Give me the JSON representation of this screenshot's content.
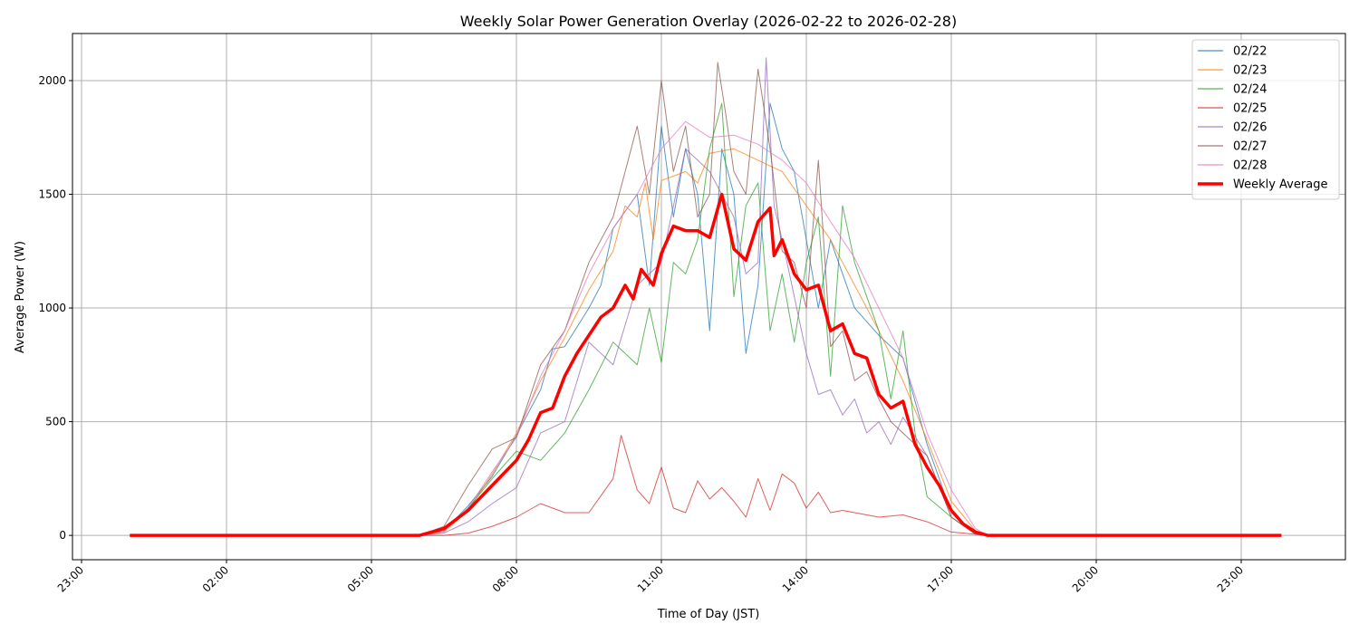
{
  "chart_data": {
    "type": "line",
    "title": "Weekly Solar Power Generation Overlay (2026-02-22 to 2026-02-28)",
    "xlabel": "Time of Day (JST)",
    "ylabel": "Average Power (W)",
    "ylim": [
      -107,
      2207
    ],
    "yticks": [
      0,
      500,
      1000,
      1500,
      2000
    ],
    "xticks": [
      "23:00",
      "02:00",
      "05:00",
      "08:00",
      "11:00",
      "14:00",
      "17:00",
      "20:00",
      "23:00"
    ],
    "grid": true,
    "legend_position": "top-right",
    "series": [
      {
        "name": "02/22",
        "color": "#1f77b4",
        "points": [
          [
            "00:00",
            0
          ],
          [
            "06:00",
            0
          ],
          [
            "06:30",
            20
          ],
          [
            "07:00",
            130
          ],
          [
            "07:30",
            260
          ],
          [
            "08:00",
            440
          ],
          [
            "08:30",
            640
          ],
          [
            "08:45",
            820
          ],
          [
            "09:00",
            830
          ],
          [
            "09:30",
            1000
          ],
          [
            "09:45",
            1100
          ],
          [
            "10:00",
            1350
          ],
          [
            "10:30",
            1500
          ],
          [
            "10:45",
            1100
          ],
          [
            "11:00",
            1800
          ],
          [
            "11:15",
            1400
          ],
          [
            "11:30",
            1700
          ],
          [
            "11:45",
            1500
          ],
          [
            "12:00",
            900
          ],
          [
            "12:15",
            1700
          ],
          [
            "12:30",
            1500
          ],
          [
            "12:45",
            800
          ],
          [
            "13:00",
            1100
          ],
          [
            "13:15",
            1900
          ],
          [
            "13:30",
            1700
          ],
          [
            "13:45",
            1600
          ],
          [
            "14:00",
            1300
          ],
          [
            "14:15",
            1000
          ],
          [
            "14:30",
            1300
          ],
          [
            "15:00",
            1000
          ],
          [
            "15:30",
            880
          ],
          [
            "16:00",
            780
          ],
          [
            "16:30",
            400
          ],
          [
            "17:00",
            100
          ],
          [
            "17:30",
            10
          ],
          [
            "17:45",
            0
          ],
          [
            "23:50",
            0
          ]
        ]
      },
      {
        "name": "02/23",
        "color": "#ff7f0e",
        "points": [
          [
            "00:00",
            0
          ],
          [
            "06:00",
            0
          ],
          [
            "06:30",
            15
          ],
          [
            "07:00",
            110
          ],
          [
            "07:30",
            270
          ],
          [
            "08:00",
            450
          ],
          [
            "08:30",
            680
          ],
          [
            "09:00",
            870
          ],
          [
            "09:30",
            1080
          ],
          [
            "10:00",
            1250
          ],
          [
            "10:15",
            1450
          ],
          [
            "10:30",
            1400
          ],
          [
            "10:40",
            1550
          ],
          [
            "10:50",
            1300
          ],
          [
            "11:00",
            1560
          ],
          [
            "11:30",
            1600
          ],
          [
            "11:45",
            1550
          ],
          [
            "12:00",
            1680
          ],
          [
            "12:30",
            1700
          ],
          [
            "13:00",
            1650
          ],
          [
            "13:30",
            1600
          ],
          [
            "14:00",
            1450
          ],
          [
            "14:30",
            1300
          ],
          [
            "15:00",
            1100
          ],
          [
            "15:30",
            900
          ],
          [
            "16:00",
            680
          ],
          [
            "16:30",
            420
          ],
          [
            "17:00",
            150
          ],
          [
            "17:30",
            20
          ],
          [
            "17:45",
            0
          ],
          [
            "23:50",
            0
          ]
        ]
      },
      {
        "name": "02/24",
        "color": "#2ca02c",
        "points": [
          [
            "00:00",
            0
          ],
          [
            "06:00",
            0
          ],
          [
            "06:30",
            20
          ],
          [
            "07:00",
            120
          ],
          [
            "07:30",
            250
          ],
          [
            "08:00",
            370
          ],
          [
            "08:30",
            330
          ],
          [
            "09:00",
            450
          ],
          [
            "09:30",
            640
          ],
          [
            "10:00",
            850
          ],
          [
            "10:30",
            750
          ],
          [
            "10:45",
            1000
          ],
          [
            "11:00",
            760
          ],
          [
            "11:15",
            1200
          ],
          [
            "11:30",
            1150
          ],
          [
            "11:45",
            1300
          ],
          [
            "12:00",
            1700
          ],
          [
            "12:15",
            1900
          ],
          [
            "12:30",
            1050
          ],
          [
            "12:45",
            1450
          ],
          [
            "13:00",
            1550
          ],
          [
            "13:15",
            900
          ],
          [
            "13:30",
            1150
          ],
          [
            "13:45",
            850
          ],
          [
            "14:00",
            1200
          ],
          [
            "14:15",
            1400
          ],
          [
            "14:30",
            700
          ],
          [
            "14:45",
            1450
          ],
          [
            "15:00",
            1200
          ],
          [
            "15:30",
            900
          ],
          [
            "15:45",
            600
          ],
          [
            "16:00",
            900
          ],
          [
            "16:15",
            450
          ],
          [
            "16:30",
            170
          ],
          [
            "17:00",
            80
          ],
          [
            "17:30",
            5
          ],
          [
            "17:45",
            0
          ],
          [
            "23:50",
            0
          ]
        ]
      },
      {
        "name": "02/25",
        "color": "#d62728",
        "points": [
          [
            "00:00",
            0
          ],
          [
            "06:30",
            0
          ],
          [
            "07:00",
            10
          ],
          [
            "07:30",
            40
          ],
          [
            "08:00",
            80
          ],
          [
            "08:30",
            140
          ],
          [
            "09:00",
            100
          ],
          [
            "09:30",
            100
          ],
          [
            "10:00",
            250
          ],
          [
            "10:10",
            440
          ],
          [
            "10:30",
            200
          ],
          [
            "10:45",
            140
          ],
          [
            "11:00",
            300
          ],
          [
            "11:15",
            120
          ],
          [
            "11:30",
            100
          ],
          [
            "11:45",
            240
          ],
          [
            "12:00",
            160
          ],
          [
            "12:15",
            210
          ],
          [
            "12:30",
            150
          ],
          [
            "12:45",
            80
          ],
          [
            "13:00",
            250
          ],
          [
            "13:15",
            110
          ],
          [
            "13:30",
            270
          ],
          [
            "13:45",
            230
          ],
          [
            "14:00",
            120
          ],
          [
            "14:15",
            190
          ],
          [
            "14:30",
            100
          ],
          [
            "14:45",
            110
          ],
          [
            "15:00",
            100
          ],
          [
            "15:30",
            80
          ],
          [
            "16:00",
            90
          ],
          [
            "16:30",
            60
          ],
          [
            "17:00",
            15
          ],
          [
            "17:30",
            5
          ],
          [
            "17:45",
            0
          ],
          [
            "23:50",
            0
          ]
        ]
      },
      {
        "name": "02/26",
        "color": "#9467bd",
        "points": [
          [
            "00:00",
            0
          ],
          [
            "06:00",
            0
          ],
          [
            "06:30",
            10
          ],
          [
            "07:00",
            60
          ],
          [
            "07:30",
            140
          ],
          [
            "08:00",
            210
          ],
          [
            "08:30",
            450
          ],
          [
            "09:00",
            500
          ],
          [
            "09:30",
            850
          ],
          [
            "10:00",
            750
          ],
          [
            "10:30",
            1100
          ],
          [
            "11:00",
            1200
          ],
          [
            "11:30",
            1700
          ],
          [
            "12:00",
            1600
          ],
          [
            "12:30",
            1400
          ],
          [
            "12:45",
            1150
          ],
          [
            "13:00",
            1200
          ],
          [
            "13:10",
            2100
          ],
          [
            "13:20",
            1450
          ],
          [
            "13:30",
            1300
          ],
          [
            "13:45",
            1050
          ],
          [
            "14:00",
            800
          ],
          [
            "14:15",
            620
          ],
          [
            "14:30",
            640
          ],
          [
            "14:45",
            530
          ],
          [
            "15:00",
            600
          ],
          [
            "15:15",
            450
          ],
          [
            "15:30",
            500
          ],
          [
            "15:45",
            400
          ],
          [
            "16:00",
            520
          ],
          [
            "16:30",
            350
          ],
          [
            "17:00",
            80
          ],
          [
            "17:30",
            5
          ],
          [
            "17:45",
            0
          ],
          [
            "23:50",
            0
          ]
        ]
      },
      {
        "name": "02/27",
        "color": "#8c564b",
        "points": [
          [
            "00:00",
            0
          ],
          [
            "06:00",
            0
          ],
          [
            "06:30",
            40
          ],
          [
            "07:00",
            220
          ],
          [
            "07:30",
            380
          ],
          [
            "08:00",
            430
          ],
          [
            "08:30",
            750
          ],
          [
            "09:00",
            900
          ],
          [
            "09:30",
            1200
          ],
          [
            "10:00",
            1400
          ],
          [
            "10:30",
            1800
          ],
          [
            "10:45",
            1500
          ],
          [
            "11:00",
            2000
          ],
          [
            "11:15",
            1600
          ],
          [
            "11:30",
            1800
          ],
          [
            "11:45",
            1400
          ],
          [
            "12:00",
            1500
          ],
          [
            "12:10",
            2080
          ],
          [
            "12:20",
            1850
          ],
          [
            "12:30",
            1600
          ],
          [
            "12:45",
            1500
          ],
          [
            "13:00",
            2050
          ],
          [
            "13:15",
            1700
          ],
          [
            "13:30",
            1250
          ],
          [
            "13:45",
            1200
          ],
          [
            "14:00",
            1000
          ],
          [
            "14:15",
            1650
          ],
          [
            "14:30",
            830
          ],
          [
            "14:45",
            900
          ],
          [
            "15:00",
            680
          ],
          [
            "15:15",
            720
          ],
          [
            "15:30",
            600
          ],
          [
            "15:45",
            500
          ],
          [
            "16:00",
            450
          ],
          [
            "16:30",
            350
          ],
          [
            "17:00",
            80
          ],
          [
            "17:30",
            5
          ],
          [
            "17:45",
            0
          ],
          [
            "23:50",
            0
          ]
        ]
      },
      {
        "name": "02/28",
        "color": "#e377c2",
        "points": [
          [
            "00:00",
            0
          ],
          [
            "06:00",
            0
          ],
          [
            "06:30",
            20
          ],
          [
            "07:00",
            120
          ],
          [
            "07:30",
            280
          ],
          [
            "08:00",
            430
          ],
          [
            "08:30",
            700
          ],
          [
            "09:00",
            900
          ],
          [
            "09:30",
            1150
          ],
          [
            "10:00",
            1350
          ],
          [
            "10:30",
            1500
          ],
          [
            "11:00",
            1700
          ],
          [
            "11:30",
            1820
          ],
          [
            "12:00",
            1750
          ],
          [
            "12:30",
            1760
          ],
          [
            "13:00",
            1720
          ],
          [
            "13:30",
            1650
          ],
          [
            "14:00",
            1550
          ],
          [
            "14:30",
            1380
          ],
          [
            "15:00",
            1220
          ],
          [
            "15:30",
            1000
          ],
          [
            "16:00",
            780
          ],
          [
            "16:30",
            450
          ],
          [
            "17:00",
            200
          ],
          [
            "17:30",
            30
          ],
          [
            "17:45",
            0
          ],
          [
            "23:50",
            0
          ]
        ]
      },
      {
        "name": "Weekly Average",
        "color": "#ff0000",
        "bold": true,
        "points": [
          [
            "00:00",
            0
          ],
          [
            "06:00",
            0
          ],
          [
            "06:30",
            30
          ],
          [
            "07:00",
            110
          ],
          [
            "07:30",
            220
          ],
          [
            "08:00",
            330
          ],
          [
            "08:15",
            420
          ],
          [
            "08:30",
            540
          ],
          [
            "08:45",
            560
          ],
          [
            "09:00",
            700
          ],
          [
            "09:15",
            800
          ],
          [
            "09:30",
            880
          ],
          [
            "09:45",
            960
          ],
          [
            "10:00",
            1000
          ],
          [
            "10:15",
            1100
          ],
          [
            "10:25",
            1040
          ],
          [
            "10:35",
            1170
          ],
          [
            "10:50",
            1100
          ],
          [
            "11:00",
            1240
          ],
          [
            "11:15",
            1360
          ],
          [
            "11:30",
            1340
          ],
          [
            "11:45",
            1340
          ],
          [
            "12:00",
            1310
          ],
          [
            "12:15",
            1500
          ],
          [
            "12:30",
            1260
          ],
          [
            "12:45",
            1210
          ],
          [
            "13:00",
            1380
          ],
          [
            "13:15",
            1440
          ],
          [
            "13:20",
            1230
          ],
          [
            "13:30",
            1300
          ],
          [
            "13:45",
            1150
          ],
          [
            "14:00",
            1080
          ],
          [
            "14:15",
            1100
          ],
          [
            "14:30",
            900
          ],
          [
            "14:45",
            930
          ],
          [
            "15:00",
            800
          ],
          [
            "15:15",
            780
          ],
          [
            "15:30",
            620
          ],
          [
            "15:45",
            560
          ],
          [
            "16:00",
            590
          ],
          [
            "16:15",
            400
          ],
          [
            "16:30",
            300
          ],
          [
            "16:45",
            220
          ],
          [
            "17:00",
            110
          ],
          [
            "17:15",
            50
          ],
          [
            "17:30",
            15
          ],
          [
            "17:45",
            0
          ],
          [
            "23:50",
            0
          ]
        ]
      }
    ]
  }
}
